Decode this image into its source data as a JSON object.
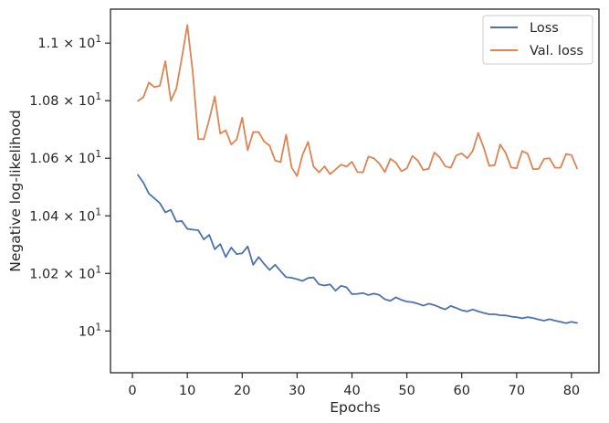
{
  "chart_data": {
    "type": "line",
    "title": "",
    "xlabel": "Epochs",
    "ylabel": "Negative log-likelihood",
    "xlim": [
      -4,
      85
    ],
    "ylim": [
      9.9855,
      10.1118
    ],
    "x_ticks": [
      0,
      10,
      20,
      30,
      40,
      50,
      60,
      70,
      80
    ],
    "y_ticks": [
      {
        "value": 10.0,
        "base": "10",
        "exp": "1"
      },
      {
        "value": 10.02,
        "base": "1.02 × 10",
        "exp": "1"
      },
      {
        "value": 10.04,
        "base": "1.04 × 10",
        "exp": "1"
      },
      {
        "value": 10.06,
        "base": "1.06 × 10",
        "exp": "1"
      },
      {
        "value": 10.08,
        "base": "1.08 × 10",
        "exp": "1"
      },
      {
        "value": 10.1,
        "base": "1.1 × 10",
        "exp": "1"
      }
    ],
    "grid": false,
    "legend_position": "top-right",
    "x": [
      1,
      2,
      3,
      4,
      5,
      6,
      7,
      8,
      9,
      10,
      11,
      12,
      13,
      14,
      15,
      16,
      17,
      18,
      19,
      20,
      21,
      22,
      23,
      24,
      25,
      26,
      27,
      28,
      29,
      30,
      31,
      32,
      33,
      34,
      35,
      36,
      37,
      38,
      39,
      40,
      41,
      42,
      43,
      44,
      45,
      46,
      47,
      48,
      49,
      50,
      51,
      52,
      53,
      54,
      55,
      56,
      57,
      58,
      59,
      60,
      61,
      62,
      63,
      64,
      65,
      66,
      67,
      68,
      69,
      70,
      71,
      72,
      73,
      74,
      75,
      76,
      77,
      78,
      79,
      80,
      81
    ],
    "series": [
      {
        "name": "Loss",
        "color": "#4c72b0",
        "values": [
          10.0542,
          10.0515,
          10.0477,
          10.0461,
          10.0444,
          10.0412,
          10.0421,
          10.038,
          10.0382,
          10.0355,
          10.0352,
          10.035,
          10.0318,
          10.0334,
          10.0284,
          10.0302,
          10.0257,
          10.029,
          10.0267,
          10.027,
          10.0294,
          10.023,
          10.0257,
          10.0233,
          10.0212,
          10.023,
          10.0208,
          10.0187,
          10.0185,
          10.018,
          10.0174,
          10.0184,
          10.0186,
          10.0162,
          10.0158,
          10.0162,
          10.014,
          10.0157,
          10.0152,
          10.0128,
          10.0129,
          10.0132,
          10.0125,
          10.013,
          10.0125,
          10.011,
          10.0105,
          10.0117,
          10.0108,
          10.0102,
          10.01,
          10.0095,
          10.0088,
          10.0095,
          10.009,
          10.0082,
          10.0075,
          10.0087,
          10.008,
          10.0072,
          10.0068,
          10.0075,
          10.0068,
          10.0063,
          10.0058,
          10.0058,
          10.0055,
          10.0054,
          10.005,
          10.0048,
          10.0044,
          10.0048,
          10.0045,
          10.004,
          10.0036,
          10.0041,
          10.0036,
          10.0032,
          10.0027,
          10.0032,
          10.0028
        ]
      },
      {
        "name": "Val. loss",
        "color": "#dd8452",
        "values": [
          10.0799,
          10.0812,
          10.0863,
          10.0847,
          10.0852,
          10.0937,
          10.08,
          10.0842,
          10.0948,
          10.1063,
          10.0898,
          10.0667,
          10.0666,
          10.0735,
          10.0815,
          10.0686,
          10.0697,
          10.0648,
          10.0665,
          10.0741,
          10.0628,
          10.0691,
          10.0691,
          10.0658,
          10.0644,
          10.0592,
          10.0587,
          10.0682,
          10.0568,
          10.0538,
          10.0612,
          10.0657,
          10.0571,
          10.0551,
          10.0572,
          10.0545,
          10.0561,
          10.0578,
          10.0571,
          10.0588,
          10.0552,
          10.0551,
          10.0606,
          10.06,
          10.0581,
          10.0552,
          10.0598,
          10.0585,
          10.0555,
          10.0565,
          10.0608,
          10.0592,
          10.0559,
          10.0564,
          10.062,
          10.0603,
          10.0572,
          10.0567,
          10.061,
          10.0617,
          10.06,
          10.0625,
          10.0688,
          10.0637,
          10.0574,
          10.0576,
          10.0648,
          10.0619,
          10.0568,
          10.0565,
          10.0625,
          10.0616,
          10.0562,
          10.0563,
          10.0598,
          10.06,
          10.0567,
          10.0567,
          10.0615,
          10.0611,
          10.0565
        ]
      }
    ]
  }
}
